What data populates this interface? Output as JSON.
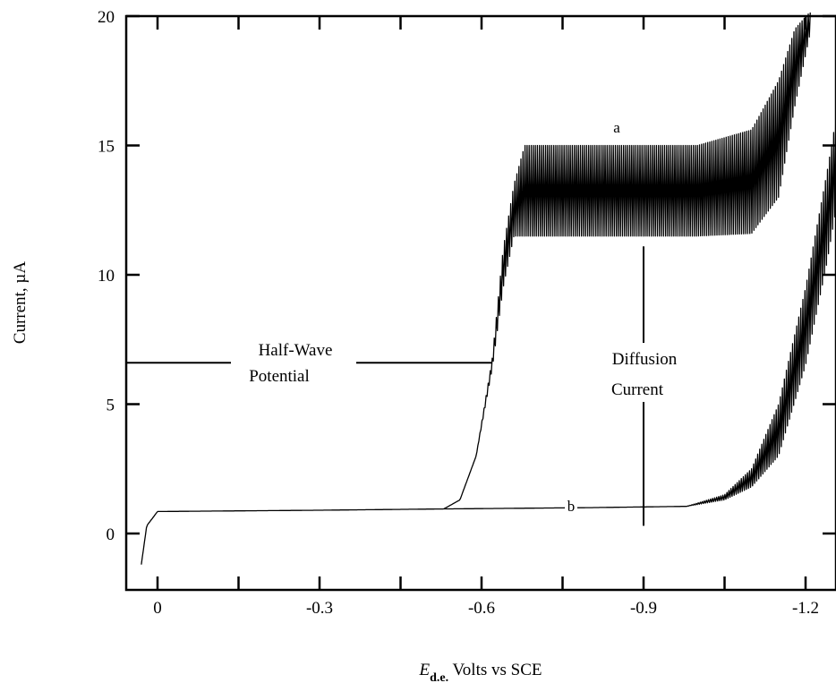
{
  "chart_data": {
    "type": "line",
    "title": "",
    "xlabel": {
      "symbol": "E",
      "subscript": "d.e.",
      "text": "Volts vs SCE"
    },
    "ylabel": "Current, µA",
    "xlim": [
      0.035,
      -1.26
    ],
    "ylim": [
      -2.2,
      20
    ],
    "x_ticks": [
      0,
      -0.3,
      -0.6,
      -0.9,
      -1.2
    ],
    "x_tick_labels": [
      "0",
      "-0.3",
      "-0.6",
      "-0.9",
      "-1.2"
    ],
    "x_minor_ticks": [
      -0.15,
      -0.45,
      -0.75,
      -1.05
    ],
    "y_ticks": [
      0,
      5,
      10,
      15,
      20
    ],
    "y_tick_labels": [
      "0",
      "5",
      "10",
      "15",
      "20"
    ],
    "grid": false,
    "series": [
      {
        "name": "a",
        "oscillating": true,
        "envelope_upper": [
          [
            0.03,
            -1.2
          ],
          [
            0.02,
            0.3
          ],
          [
            0.0,
            0.85
          ],
          [
            -0.3,
            0.9
          ],
          [
            -0.53,
            0.95
          ],
          [
            -0.56,
            1.3
          ],
          [
            -0.59,
            3.0
          ],
          [
            -0.62,
            6.8
          ],
          [
            -0.64,
            11.0
          ],
          [
            -0.66,
            13.5
          ],
          [
            -0.68,
            15.0
          ],
          [
            -0.9,
            15.0
          ],
          [
            -1.0,
            15.0
          ],
          [
            -1.1,
            15.6
          ],
          [
            -1.15,
            17.5
          ],
          [
            -1.18,
            19.5
          ],
          [
            -1.21,
            20.2
          ]
        ],
        "envelope_lower": [
          [
            0.03,
            -1.2
          ],
          [
            0.02,
            0.3
          ],
          [
            0.0,
            0.85
          ],
          [
            -0.3,
            0.9
          ],
          [
            -0.53,
            0.95
          ],
          [
            -0.56,
            1.3
          ],
          [
            -0.59,
            3.0
          ],
          [
            -0.62,
            6.4
          ],
          [
            -0.64,
            9.5
          ],
          [
            -0.66,
            11.5
          ],
          [
            -0.68,
            11.5
          ],
          [
            -0.9,
            11.5
          ],
          [
            -1.0,
            11.5
          ],
          [
            -1.1,
            11.6
          ],
          [
            -1.15,
            13.0
          ],
          [
            -1.18,
            16.5
          ],
          [
            -1.21,
            19.5
          ]
        ]
      },
      {
        "name": "b",
        "oscillating": true,
        "envelope_upper": [
          [
            -0.53,
            0.95
          ],
          [
            -0.8,
            1.0
          ],
          [
            -0.98,
            1.05
          ],
          [
            -1.05,
            1.5
          ],
          [
            -1.1,
            2.5
          ],
          [
            -1.15,
            5.0
          ],
          [
            -1.2,
            9.5
          ],
          [
            -1.24,
            14.0
          ],
          [
            -1.26,
            16.5
          ]
        ],
        "envelope_lower": [
          [
            -0.53,
            0.95
          ],
          [
            -0.8,
            1.0
          ],
          [
            -0.98,
            1.05
          ],
          [
            -1.05,
            1.3
          ],
          [
            -1.1,
            1.8
          ],
          [
            -1.15,
            3.0
          ],
          [
            -1.2,
            6.5
          ],
          [
            -1.24,
            10.5
          ],
          [
            -1.26,
            13.0
          ]
        ]
      }
    ],
    "annotations": {
      "half_wave": {
        "lines": [
          "Half-Wave",
          "Potential"
        ],
        "y": 6.6,
        "x_from": 0.035,
        "x_to": -0.62
      },
      "diffusion": {
        "lines": [
          "Diffusion",
          "Current"
        ],
        "x": -0.9,
        "y_from": 0.3,
        "y_to": 11.1
      },
      "label_a": {
        "text": "a",
        "x": -0.84,
        "y": 15.6
      },
      "label_b": {
        "text": "b",
        "x": -0.76,
        "y": 1.0
      }
    }
  }
}
